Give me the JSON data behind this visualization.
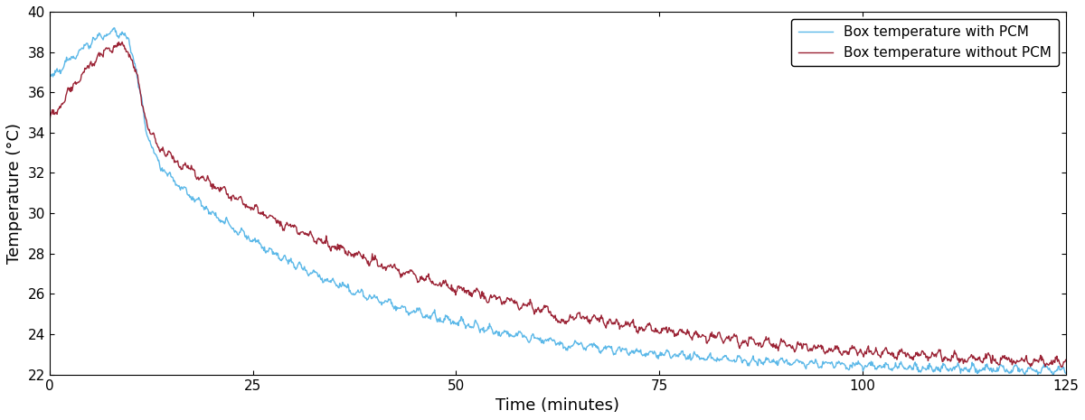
{
  "title": "",
  "xlabel": "Time (minutes)",
  "ylabel": "Temperature (°C)",
  "xlim": [
    0,
    125
  ],
  "ylim": [
    22,
    40
  ],
  "yticks": [
    22,
    24,
    26,
    28,
    30,
    32,
    34,
    36,
    38,
    40
  ],
  "xticks": [
    0,
    25,
    50,
    75,
    100,
    125
  ],
  "color_pcm": "#5BB8E8",
  "color_no_pcm": "#9B2335",
  "legend_with": "Box temperature with PCM",
  "legend_without": "Box temperature without PCM",
  "bg_color": "#ffffff",
  "linewidth": 1.0
}
